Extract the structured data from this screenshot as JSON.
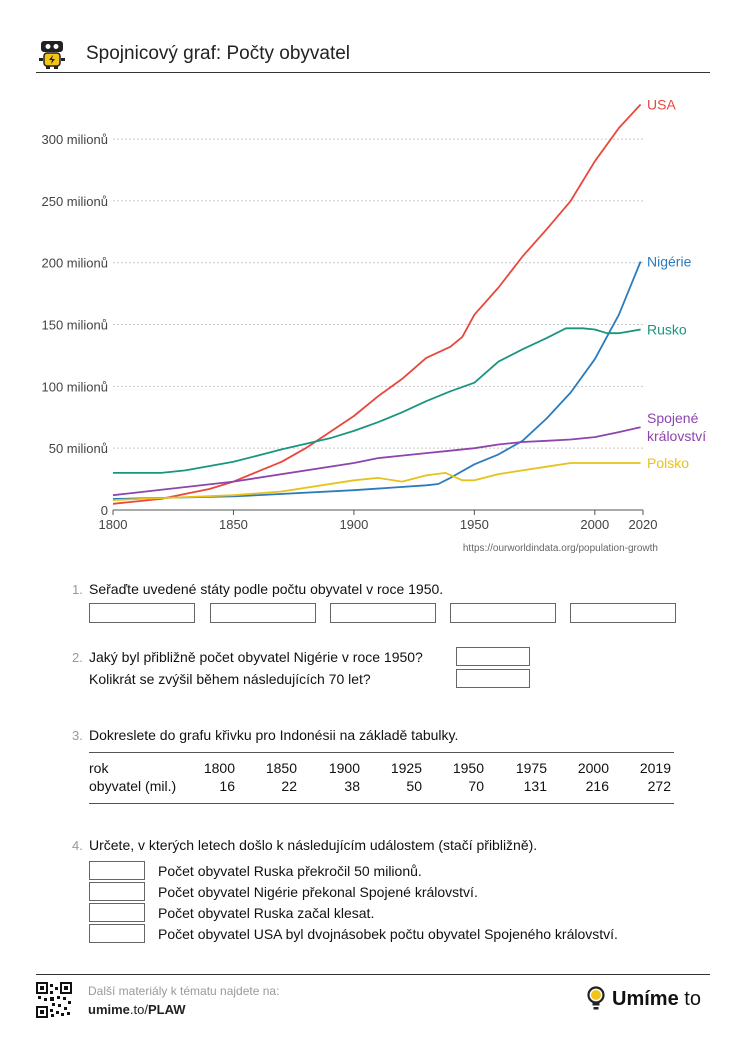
{
  "header": {
    "title": "Spojnicový graf: Počty obyvatel"
  },
  "chart_data": {
    "type": "line",
    "xlabel": "",
    "ylabel": "",
    "xlim": [
      1800,
      2020
    ],
    "ylim": [
      0,
      330
    ],
    "x_ticks": [
      1800,
      1850,
      1900,
      1950,
      2000,
      2020
    ],
    "y_ticks": [
      {
        "value": 0,
        "label": "0"
      },
      {
        "value": 50,
        "label": "50 milionů"
      },
      {
        "value": 100,
        "label": "100 milionů"
      },
      {
        "value": 150,
        "label": "150 milionů"
      },
      {
        "value": 200,
        "label": "200 milionů"
      },
      {
        "value": 250,
        "label": "250 milionů"
      },
      {
        "value": 300,
        "label": "300 milionů"
      }
    ],
    "grid": "horizontal dashed",
    "source": "https://ourworldindata.org/population-growth",
    "series": [
      {
        "name": "USA",
        "color": "#e8473c",
        "labels": [
          "USA"
        ],
        "points": [
          [
            1800,
            5
          ],
          [
            1820,
            9
          ],
          [
            1830,
            13
          ],
          [
            1840,
            17
          ],
          [
            1850,
            23
          ],
          [
            1860,
            31
          ],
          [
            1870,
            39
          ],
          [
            1880,
            50
          ],
          [
            1890,
            63
          ],
          [
            1900,
            76
          ],
          [
            1910,
            92
          ],
          [
            1920,
            106
          ],
          [
            1930,
            123
          ],
          [
            1940,
            132
          ],
          [
            1945,
            140
          ],
          [
            1950,
            158
          ],
          [
            1960,
            180
          ],
          [
            1970,
            205
          ],
          [
            1980,
            227
          ],
          [
            1990,
            250
          ],
          [
            2000,
            282
          ],
          [
            2010,
            309
          ],
          [
            2019,
            328
          ]
        ]
      },
      {
        "name": "Nigérie",
        "color": "#2b7bbd",
        "labels": [
          "Nigérie"
        ],
        "points": [
          [
            1800,
            9
          ],
          [
            1850,
            11
          ],
          [
            1900,
            16
          ],
          [
            1930,
            20
          ],
          [
            1935,
            21
          ],
          [
            1940,
            26
          ],
          [
            1950,
            37
          ],
          [
            1960,
            45
          ],
          [
            1970,
            56
          ],
          [
            1980,
            74
          ],
          [
            1990,
            95
          ],
          [
            2000,
            122
          ],
          [
            2010,
            158
          ],
          [
            2019,
            201
          ]
        ]
      },
      {
        "name": "Rusko",
        "color": "#1a9580",
        "labels": [
          "Rusko"
        ],
        "points": [
          [
            1800,
            30
          ],
          [
            1820,
            30
          ],
          [
            1830,
            32
          ],
          [
            1850,
            39
          ],
          [
            1870,
            49
          ],
          [
            1890,
            58
          ],
          [
            1900,
            64
          ],
          [
            1910,
            71
          ],
          [
            1920,
            79
          ],
          [
            1930,
            88
          ],
          [
            1940,
            96
          ],
          [
            1950,
            103
          ],
          [
            1960,
            120
          ],
          [
            1970,
            130
          ],
          [
            1980,
            139
          ],
          [
            1988,
            147
          ],
          [
            1995,
            147
          ],
          [
            2000,
            146
          ],
          [
            2005,
            143
          ],
          [
            2010,
            143
          ],
          [
            2019,
            146
          ]
        ]
      },
      {
        "name": "Spojené království",
        "color": "#8e44ad",
        "labels": [
          "Spojené",
          "království"
        ],
        "points": [
          [
            1800,
            12
          ],
          [
            1850,
            23
          ],
          [
            1900,
            38
          ],
          [
            1910,
            42
          ],
          [
            1920,
            44
          ],
          [
            1930,
            46
          ],
          [
            1940,
            48
          ],
          [
            1950,
            50
          ],
          [
            1960,
            53
          ],
          [
            1970,
            55
          ],
          [
            1980,
            56
          ],
          [
            1990,
            57
          ],
          [
            2000,
            59
          ],
          [
            2010,
            63
          ],
          [
            2019,
            67
          ]
        ]
      },
      {
        "name": "Polsko",
        "color": "#e6c21a",
        "labels": [
          "Polsko"
        ],
        "points": [
          [
            1800,
            8
          ],
          [
            1850,
            12
          ],
          [
            1870,
            15
          ],
          [
            1900,
            24
          ],
          [
            1910,
            26
          ],
          [
            1920,
            23
          ],
          [
            1930,
            28
          ],
          [
            1938,
            30
          ],
          [
            1945,
            24
          ],
          [
            1950,
            24
          ],
          [
            1960,
            29
          ],
          [
            1970,
            32
          ],
          [
            1980,
            35
          ],
          [
            1990,
            38
          ],
          [
            2000,
            38
          ],
          [
            2010,
            38
          ],
          [
            2019,
            38
          ]
        ]
      }
    ]
  },
  "questions": {
    "q1": {
      "num": "1.",
      "text": "Seřaďte uvedené státy podle počtu obyvatel v roce 1950."
    },
    "q2": {
      "num": "2.",
      "line1": "Jaký byl přibližně počet obyvatel Nigérie v roce 1950?",
      "line2": "Kolikrát se zvýšil během následujících 70 let?"
    },
    "q3": {
      "num": "3.",
      "text": "Dokreslete do grafu křivku pro Indonésii na základě tabulky.",
      "table": {
        "row1_label": "rok",
        "row2_label": "obyvatel (mil.)",
        "years": [
          "1800",
          "1850",
          "1900",
          "1925",
          "1950",
          "1975",
          "2000",
          "2019"
        ],
        "values": [
          "16",
          "22",
          "38",
          "50",
          "70",
          "131",
          "216",
          "272"
        ]
      }
    },
    "q4": {
      "num": "4.",
      "text": "Určete, v kterých letech došlo k následujícím událostem (stačí přibližně).",
      "items": [
        "Počet obyvatel Ruska překročil 50 milionů.",
        "Počet obyvatel Nigérie překonal Spojené království.",
        "Počet obyvatel Ruska začal klesat.",
        "Počet obyvatel USA byl dvojnásobek počtu obyvatel Spojeného království."
      ]
    }
  },
  "footer": {
    "text1": "Další materiály k tématu najdete na:",
    "link_bold1": "umime",
    "link_mid": ".to/",
    "link_bold2": "PLAW",
    "brand_bold": "Umíme",
    "brand_light": " to"
  }
}
